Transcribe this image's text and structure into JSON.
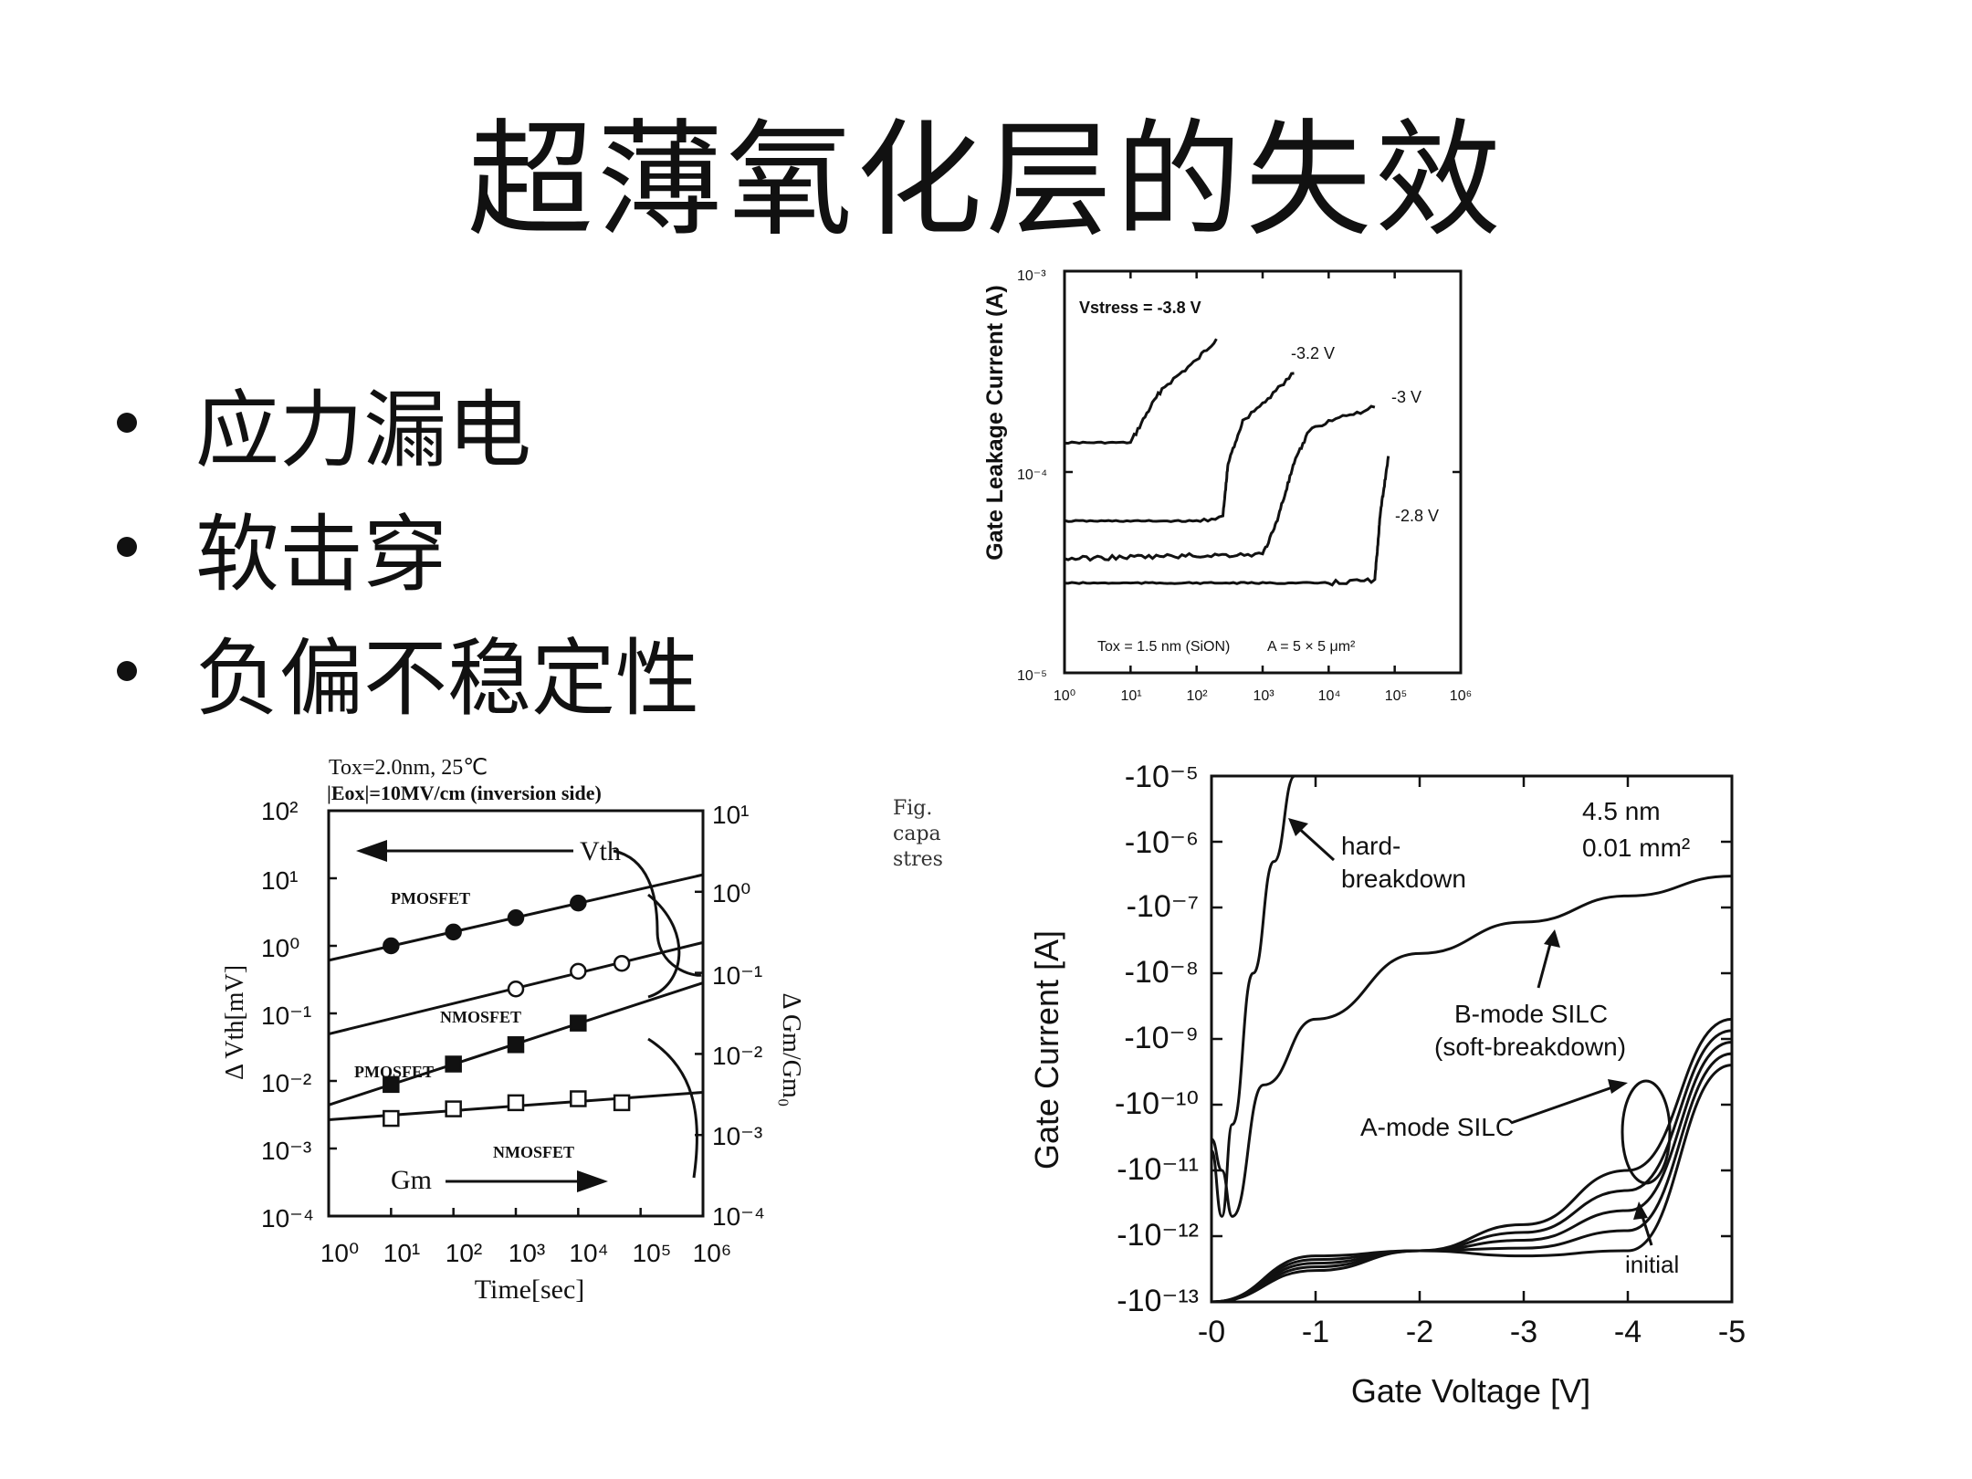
{
  "slide": {
    "title": "超薄氧化层的失效",
    "bullets": [
      "应力漏电",
      "软击穿",
      "负偏不稳定性"
    ]
  },
  "figures": {
    "top": {
      "ylabel": "Gate Leakage Current (A)",
      "yticks": [
        "10⁻³",
        "10⁻⁴",
        "10⁻⁵"
      ],
      "xticks": [
        "10⁰",
        "10¹",
        "10²",
        "10³",
        "10⁴",
        "10⁵",
        "10⁶"
      ],
      "vstress": "Vstress = -3.8 V",
      "curve_labels": [
        "-3.2 V",
        "-3 V",
        "-2.8 V"
      ],
      "tox": "Tox = 1.5 nm (SiON)",
      "area": "A = 5 × 5 μm²"
    },
    "left": {
      "cond1": "Tox=2.0nm, 25℃",
      "cond2": "|Eox|=10MV/cm (inversion side)",
      "ylabel_left": "Δ Vth[mV]",
      "ylabel_right": "Δ Gm/Gm₀",
      "xlabel": "Time[sec]",
      "yticks_left": [
        "10²",
        "10¹",
        "10⁰",
        "10⁻¹",
        "10⁻²",
        "10⁻³",
        "10⁻⁴"
      ],
      "yticks_right": [
        "10¹",
        "10⁰",
        "10⁻¹",
        "10⁻²",
        "10⁻³",
        "10⁻⁴"
      ],
      "xticks": [
        "10⁰",
        "10¹",
        "10²",
        "10³",
        "10⁴",
        "10⁵",
        "10⁶"
      ],
      "vth": "Vth",
      "gm": "Gm",
      "series_labels": [
        "PMOSFET",
        "NMOSFET",
        "PMOSFET",
        "NMOSFET"
      ],
      "caption_fragment": [
        "Fig.",
        "capa",
        "stres"
      ]
    },
    "right": {
      "ylabel": "Gate Current [A]",
      "xlabel": "Gate Voltage [V]",
      "yticks": [
        "-10⁻⁵",
        "-10⁻⁶",
        "-10⁻⁷",
        "-10⁻⁸",
        "-10⁻⁹",
        "-10⁻¹⁰",
        "-10⁻¹¹",
        "-10⁻¹²",
        "-10⁻¹³"
      ],
      "xticks": [
        "-0",
        "-1",
        "-2",
        "-3",
        "-4",
        "-5"
      ],
      "thickness": "4.5 nm",
      "area": "0.01 mm²",
      "hard1": "hard-",
      "hard2": "breakdown",
      "bmode1": "B-mode SILC",
      "bmode2": "(soft-breakdown)",
      "amode": "A-mode SILC",
      "initial": "initial"
    }
  },
  "chart_data": [
    {
      "type": "line",
      "xscale": "log",
      "yscale": "log",
      "ylabel": "Gate Leakage Current (A)",
      "xlim": [
        1,
        1000000
      ],
      "ylim": [
        1e-05,
        0.001
      ],
      "series": [
        {
          "name": "-3.8 V",
          "x": [
            1,
            10,
            20,
            30,
            100,
            200
          ],
          "y": [
            0.00014,
            0.00014,
            0.00021,
            0.00026,
            0.00036,
            0.00046
          ]
        },
        {
          "name": "-3.2 V",
          "x": [
            1,
            100,
            250,
            300,
            500,
            1000,
            3000
          ],
          "y": [
            5.7e-05,
            5.7e-05,
            6e-05,
            0.00011,
            0.00018,
            0.00022,
            0.00031
          ]
        },
        {
          "name": "-3 V",
          "x": [
            1,
            1000,
            1500,
            3000,
            5000,
            10000,
            50000
          ],
          "y": [
            3.7e-05,
            3.9e-05,
            5.2e-05,
            0.00011,
            0.00016,
            0.00018,
            0.00021
          ]
        },
        {
          "name": "-2.8 V",
          "x": [
            1,
            10000,
            50000,
            60000,
            80000
          ],
          "y": [
            2.8e-05,
            2.8e-05,
            2.9e-05,
            6e-05,
            0.00012
          ]
        }
      ]
    },
    {
      "type": "scatter",
      "xscale": "log",
      "yscale": "log",
      "xlabel": "Time[sec]",
      "ylabel": "Δ Vth[mV]",
      "ylabel_right": "Δ Gm/Gm₀",
      "xlim": [
        1,
        1000000
      ],
      "ylim": [
        0.0001,
        100
      ],
      "ylim_right": [
        0.0001,
        10
      ],
      "series": [
        {
          "name": "PMOSFET",
          "axis": "left",
          "marker": "filled-circle",
          "x": [
            10,
            100,
            1000,
            10000
          ],
          "y": [
            1.0,
            1.6,
            2.6,
            4.3
          ]
        },
        {
          "name": "NMOSFET",
          "axis": "left",
          "marker": "open-circle",
          "x": [
            1000,
            10000,
            50000
          ],
          "y": [
            0.23,
            0.42,
            0.55
          ]
        },
        {
          "name": "PMOSFET",
          "axis": "right",
          "marker": "filled-square",
          "x": [
            10,
            100,
            1000,
            10000
          ],
          "y": [
            0.0042,
            0.0075,
            0.013,
            0.024
          ]
        },
        {
          "name": "NMOSFET",
          "axis": "right",
          "marker": "open-square",
          "x": [
            10,
            100,
            1000,
            10000,
            50000
          ],
          "y": [
            0.0016,
            0.0021,
            0.0025,
            0.0028,
            0.0025
          ]
        }
      ]
    },
    {
      "type": "line",
      "yscale": "log",
      "xlabel": "Gate Voltage [V]",
      "ylabel": "Gate Current [A]",
      "xlim": [
        0,
        -5
      ],
      "ylim": [
        -1e-13,
        -1e-05
      ],
      "series": [
        {
          "name": "hard-breakdown",
          "x": [
            0,
            -0.1,
            -0.2,
            -0.4,
            -0.6,
            -0.8
          ],
          "y": [
            -2e-11,
            -2e-12,
            -5e-11,
            -1e-08,
            -5e-07,
            -1e-05
          ]
        },
        {
          "name": "B-mode SILC",
          "x": [
            0,
            -0.1,
            -0.2,
            -0.5,
            -1,
            -2,
            -3,
            -4,
            -5
          ],
          "y": [
            -3e-11,
            -1e-11,
            -2e-12,
            -2e-10,
            -2e-09,
            -2e-08,
            -6e-08,
            -1.5e-07,
            -3e-07
          ]
        },
        {
          "name": "A-mode SILC",
          "x": [
            0,
            -1,
            -2,
            -3,
            -4,
            -5
          ],
          "y": [
            -1e-13,
            -5e-13,
            -6e-13,
            -1.5e-12,
            -1e-11,
            -2e-09
          ]
        },
        {
          "name": "initial",
          "x": [
            0,
            -1,
            -2,
            -3,
            -4,
            -5
          ],
          "y": [
            -1e-13,
            -3e-13,
            -6e-13,
            -5e-13,
            -6e-13,
            -4e-10
          ]
        }
      ]
    }
  ]
}
